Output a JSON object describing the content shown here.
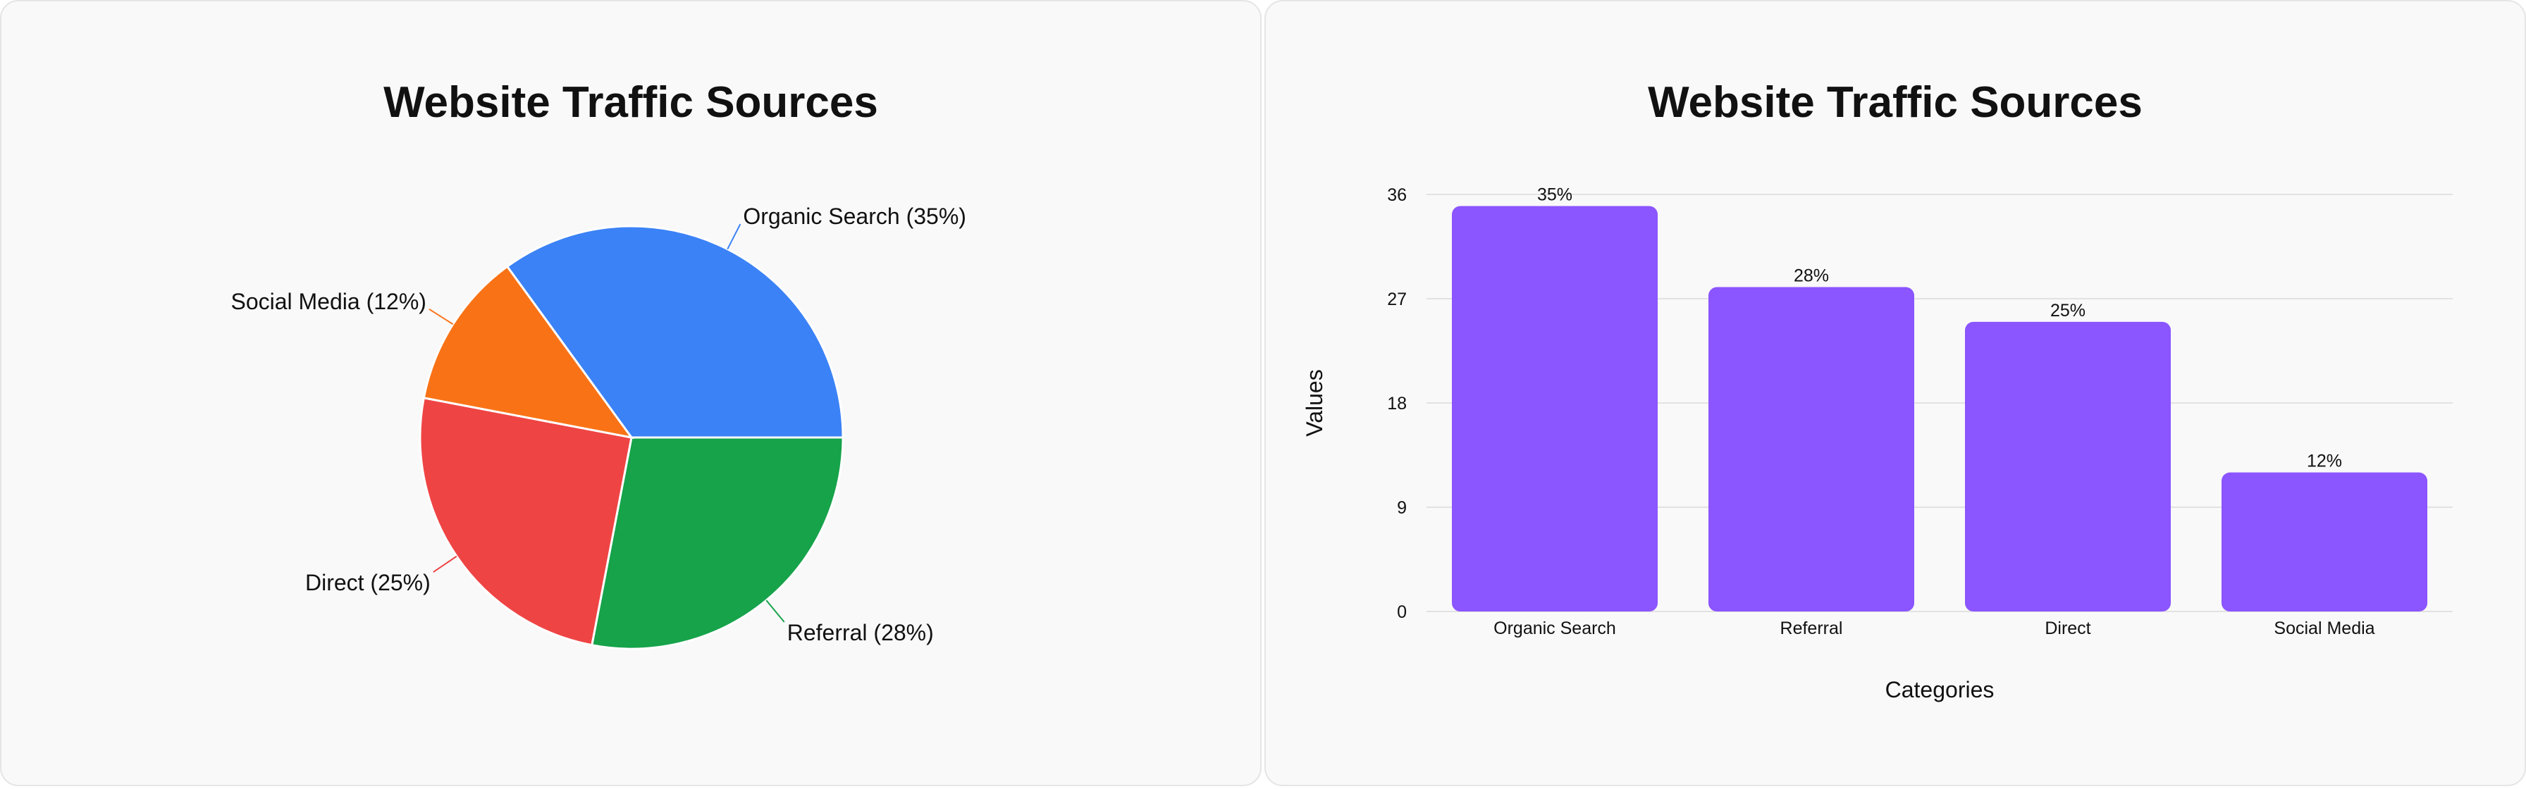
{
  "chart_data": [
    {
      "type": "pie",
      "title": "Website Traffic Sources",
      "categories": [
        "Organic Search",
        "Referral",
        "Direct",
        "Social Media"
      ],
      "values": [
        35,
        28,
        25,
        12
      ],
      "labels": [
        "Organic Search (35%)",
        "Referral (28%)",
        "Direct (25%)",
        "Social Media (12%)"
      ],
      "colors": [
        "#3b82f6",
        "#16a34a",
        "#ef4444",
        "#f97316"
      ]
    },
    {
      "type": "bar",
      "title": "Website Traffic Sources",
      "categories": [
        "Organic Search",
        "Referral",
        "Direct",
        "Social Media"
      ],
      "values": [
        35,
        28,
        25,
        12
      ],
      "data_labels": [
        "35%",
        "28%",
        "25%",
        "12%"
      ],
      "xlabel": "Categories",
      "ylabel": "Values",
      "yticks": [
        "0",
        "9",
        "18",
        "27",
        "36"
      ],
      "ylim": [
        0,
        36
      ],
      "grid": true,
      "color": "#8b55ff"
    }
  ]
}
